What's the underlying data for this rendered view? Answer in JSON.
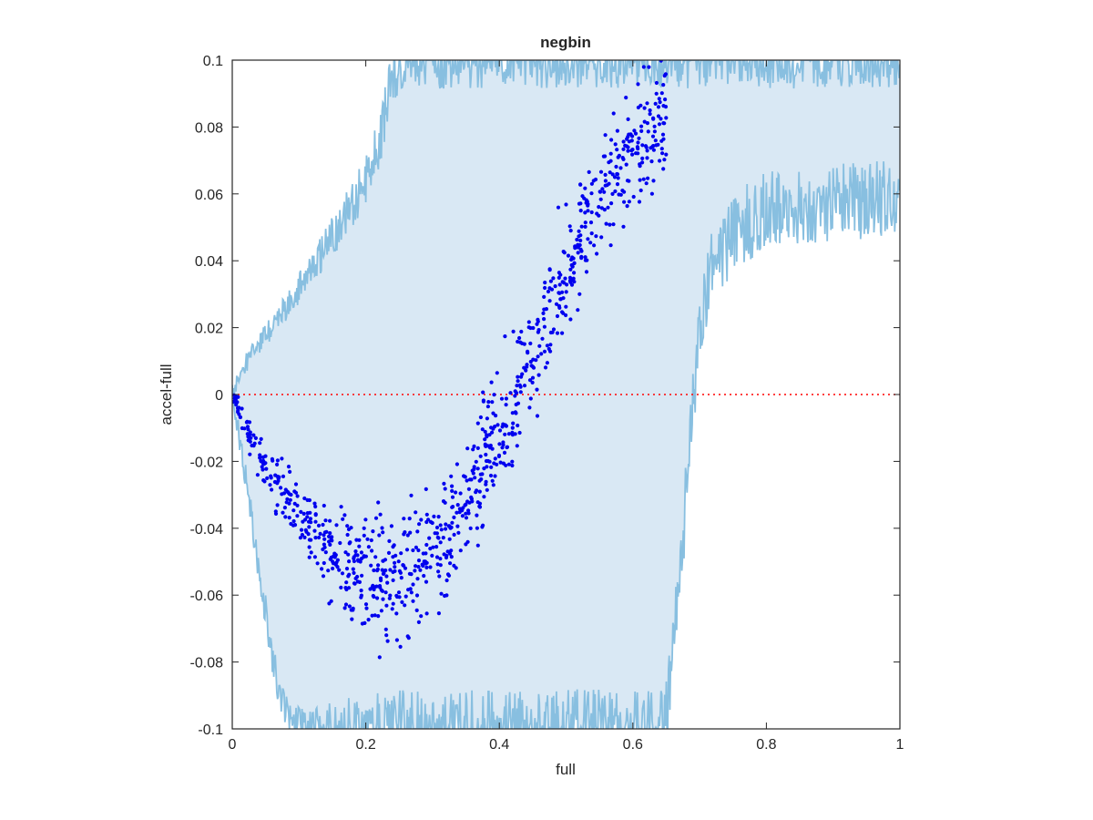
{
  "chart_data": {
    "type": "scatter",
    "title": "negbin",
    "xlabel": "full",
    "ylabel": "accel-full",
    "xlim": [
      0,
      1
    ],
    "ylim": [
      -0.1,
      0.1
    ],
    "xticks": [
      0,
      0.2,
      0.4,
      0.6,
      0.8,
      1
    ],
    "xtick_labels": [
      "0",
      "0.2",
      "0.4",
      "0.6",
      "0.8",
      "1"
    ],
    "yticks": [
      -0.1,
      -0.08,
      -0.06,
      -0.04,
      -0.02,
      0,
      0.02,
      0.04,
      0.06,
      0.08,
      0.1
    ],
    "ytick_labels": [
      "-0.1",
      "-0.08",
      "-0.06",
      "-0.04",
      "-0.02",
      "0",
      "0.02",
      "0.04",
      "0.06",
      "0.08",
      "0.1"
    ],
    "grid": false,
    "legend": "none",
    "colors": {
      "band_fill": "#d9e8f4",
      "band_edge": "#88bfe0",
      "points": "#0000ee",
      "reference": "#ff0000",
      "axes": "#262626"
    },
    "band_upper": {
      "x": [
        0,
        0.01,
        0.02,
        0.04,
        0.06,
        0.08,
        0.1,
        0.12,
        0.14,
        0.16,
        0.18,
        0.2,
        0.22,
        0.23,
        0.235,
        0.24,
        0.25,
        0.26,
        0.28,
        0.3,
        0.32,
        0.64,
        0.66,
        0.67,
        0.68,
        0.69,
        0.7,
        0.71,
        0.72,
        0.74,
        0.76,
        0.8,
        0.85,
        0.9,
        0.95,
        1.0
      ],
      "y": [
        0,
        0.005,
        0.009,
        0.015,
        0.02,
        0.026,
        0.032,
        0.038,
        0.044,
        0.05,
        0.057,
        0.064,
        0.075,
        0.085,
        0.092,
        0.095,
        0.098,
        0.1,
        0.1,
        0.1,
        0.1,
        0.1,
        0.1,
        0.1,
        0.1,
        0.1,
        0.1,
        0.1,
        0.1,
        0.1,
        0.1,
        0.1,
        0.1,
        0.1,
        0.1,
        0.1
      ]
    },
    "band_lower": {
      "x": [
        0,
        0.01,
        0.02,
        0.03,
        0.04,
        0.05,
        0.06,
        0.07,
        0.08,
        0.09,
        0.1,
        0.12,
        0.5,
        0.55,
        0.6,
        0.62,
        0.64,
        0.65,
        0.66,
        0.67,
        0.68,
        0.685,
        0.69,
        0.7,
        0.71,
        0.72,
        0.74,
        0.76,
        0.8,
        0.85,
        0.9,
        0.95,
        1.0
      ],
      "y": [
        0,
        -0.012,
        -0.025,
        -0.038,
        -0.052,
        -0.065,
        -0.078,
        -0.088,
        -0.096,
        -0.1,
        -0.1,
        -0.1,
        -0.1,
        -0.1,
        -0.1,
        -0.1,
        -0.1,
        -0.095,
        -0.08,
        -0.055,
        -0.03,
        -0.012,
        0.0,
        0.018,
        0.03,
        0.038,
        0.045,
        0.05,
        0.055,
        0.057,
        0.057,
        0.058,
        0.058
      ]
    },
    "scatter_trend": {
      "x": [
        0.0,
        0.02,
        0.05,
        0.08,
        0.1,
        0.12,
        0.15,
        0.18,
        0.2,
        0.22,
        0.25,
        0.28,
        0.3,
        0.32,
        0.35,
        0.38,
        0.4,
        0.42,
        0.45,
        0.48,
        0.5,
        0.52,
        0.55,
        0.58,
        0.6,
        0.62,
        0.64,
        0.65
      ],
      "y": [
        0.0,
        -0.01,
        -0.022,
        -0.031,
        -0.037,
        -0.042,
        -0.048,
        -0.051,
        -0.053,
        -0.054,
        -0.054,
        -0.051,
        -0.047,
        -0.041,
        -0.031,
        -0.019,
        -0.01,
        -0.001,
        0.012,
        0.025,
        0.035,
        0.045,
        0.06,
        0.068,
        0.073,
        0.077,
        0.081,
        0.083
      ]
    }
  }
}
